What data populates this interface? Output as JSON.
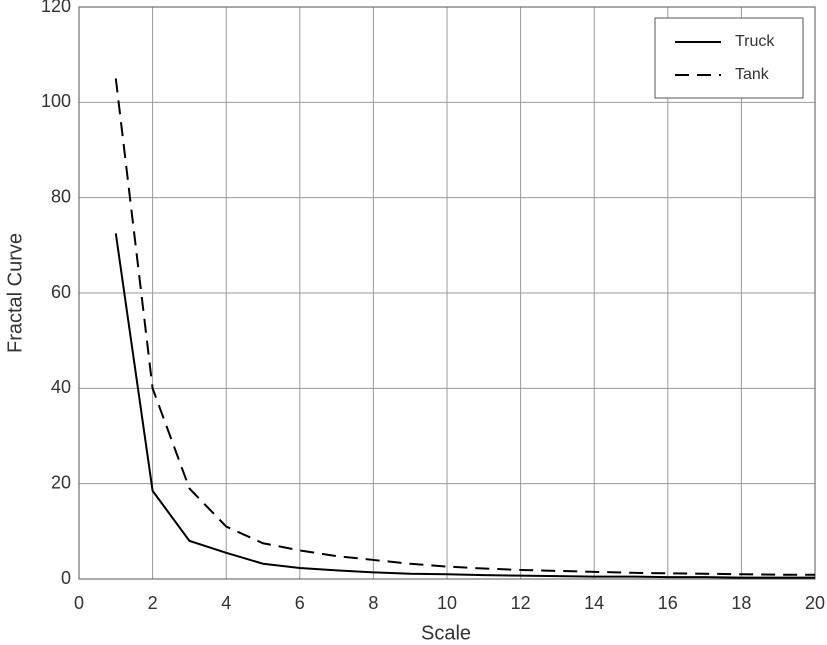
{
  "chart_data": {
    "type": "line",
    "x_label": "Scale",
    "y_label": "Fractal Curve",
    "x": [
      1,
      2,
      3,
      4,
      5,
      6,
      7,
      8,
      9,
      10,
      11,
      12,
      13,
      14,
      15,
      16,
      17,
      18,
      19,
      20
    ],
    "series": [
      {
        "name": "Truck",
        "color": "#000000",
        "style": "solid",
        "values": [
          72.5,
          18.5,
          8,
          5.5,
          3.2,
          2.3,
          1.8,
          1.4,
          1.1,
          1.0,
          0.8,
          0.7,
          0.6,
          0.5,
          0.5,
          0.4,
          0.4,
          0.3,
          0.3,
          0.3
        ]
      },
      {
        "name": "Tank",
        "color": "#000000",
        "style": "dashed",
        "values": [
          105,
          40,
          19,
          11,
          7.5,
          6,
          4.8,
          4,
          3.2,
          2.6,
          2.2,
          1.9,
          1.7,
          1.5,
          1.3,
          1.2,
          1.1,
          1.0,
          0.9,
          0.9
        ]
      }
    ],
    "xlim": [
      0,
      20
    ],
    "xticks": [
      0,
      2,
      4,
      6,
      8,
      10,
      12,
      14,
      16,
      18,
      20
    ],
    "ylim": [
      0,
      120
    ],
    "yticks": [
      0,
      20,
      40,
      60,
      80,
      100,
      120
    ],
    "grid": true,
    "legend": "top-right"
  }
}
